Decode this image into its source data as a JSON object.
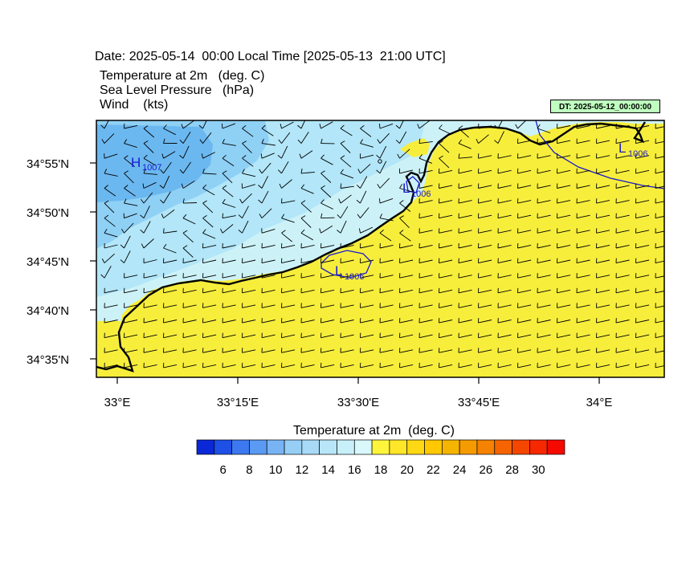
{
  "header": {
    "date_line": "Date: 2025-05-14  00:00 Local Time [2025-05-13  21:00 UTC]",
    "fields": [
      "Temperature at 2m   (deg. C)",
      "Sea Level Pressure   (hPa)",
      "Wind    (kts)"
    ],
    "dt_badge": "DT: 2025-05-12_00:00:00"
  },
  "map": {
    "lat_labels": [
      "34°55'N",
      "34°50'N",
      "34°45'N",
      "34°40'N",
      "34°35'N"
    ],
    "lon_labels": [
      "33°E",
      "33°15'E",
      "33°30'E",
      "33°45'E",
      "34°E"
    ],
    "land_color": "#f7ee3c",
    "sea_colors": [
      "#6bb8f0",
      "#8fd0f5",
      "#b2e6f8",
      "#ccf2f8"
    ],
    "pressure_centers": [
      {
        "letter": "H",
        "value": "1007"
      },
      {
        "letter": "L",
        "value": "1006"
      },
      {
        "letter": "L",
        "value": "1006"
      },
      {
        "letter": "L",
        "value": "1006"
      }
    ]
  },
  "colorbar": {
    "title": "Temperature at 2m  (deg. C)",
    "labels": [
      "6",
      "8",
      "10",
      "12",
      "14",
      "16",
      "18",
      "20",
      "22",
      "24",
      "26",
      "28",
      "30"
    ],
    "colors": [
      "#0a28d8",
      "#1e50e6",
      "#3c78f0",
      "#5a9af2",
      "#78b4f4",
      "#96cef6",
      "#a8daf7",
      "#b8e6f8",
      "#c8f0fa",
      "#d8f8fc",
      "#fff43c",
      "#ffe628",
      "#ffd814",
      "#ffc800",
      "#f5b400",
      "#f59b00",
      "#f58200",
      "#f56400",
      "#f54600",
      "#f52800",
      "#f50a00"
    ]
  }
}
